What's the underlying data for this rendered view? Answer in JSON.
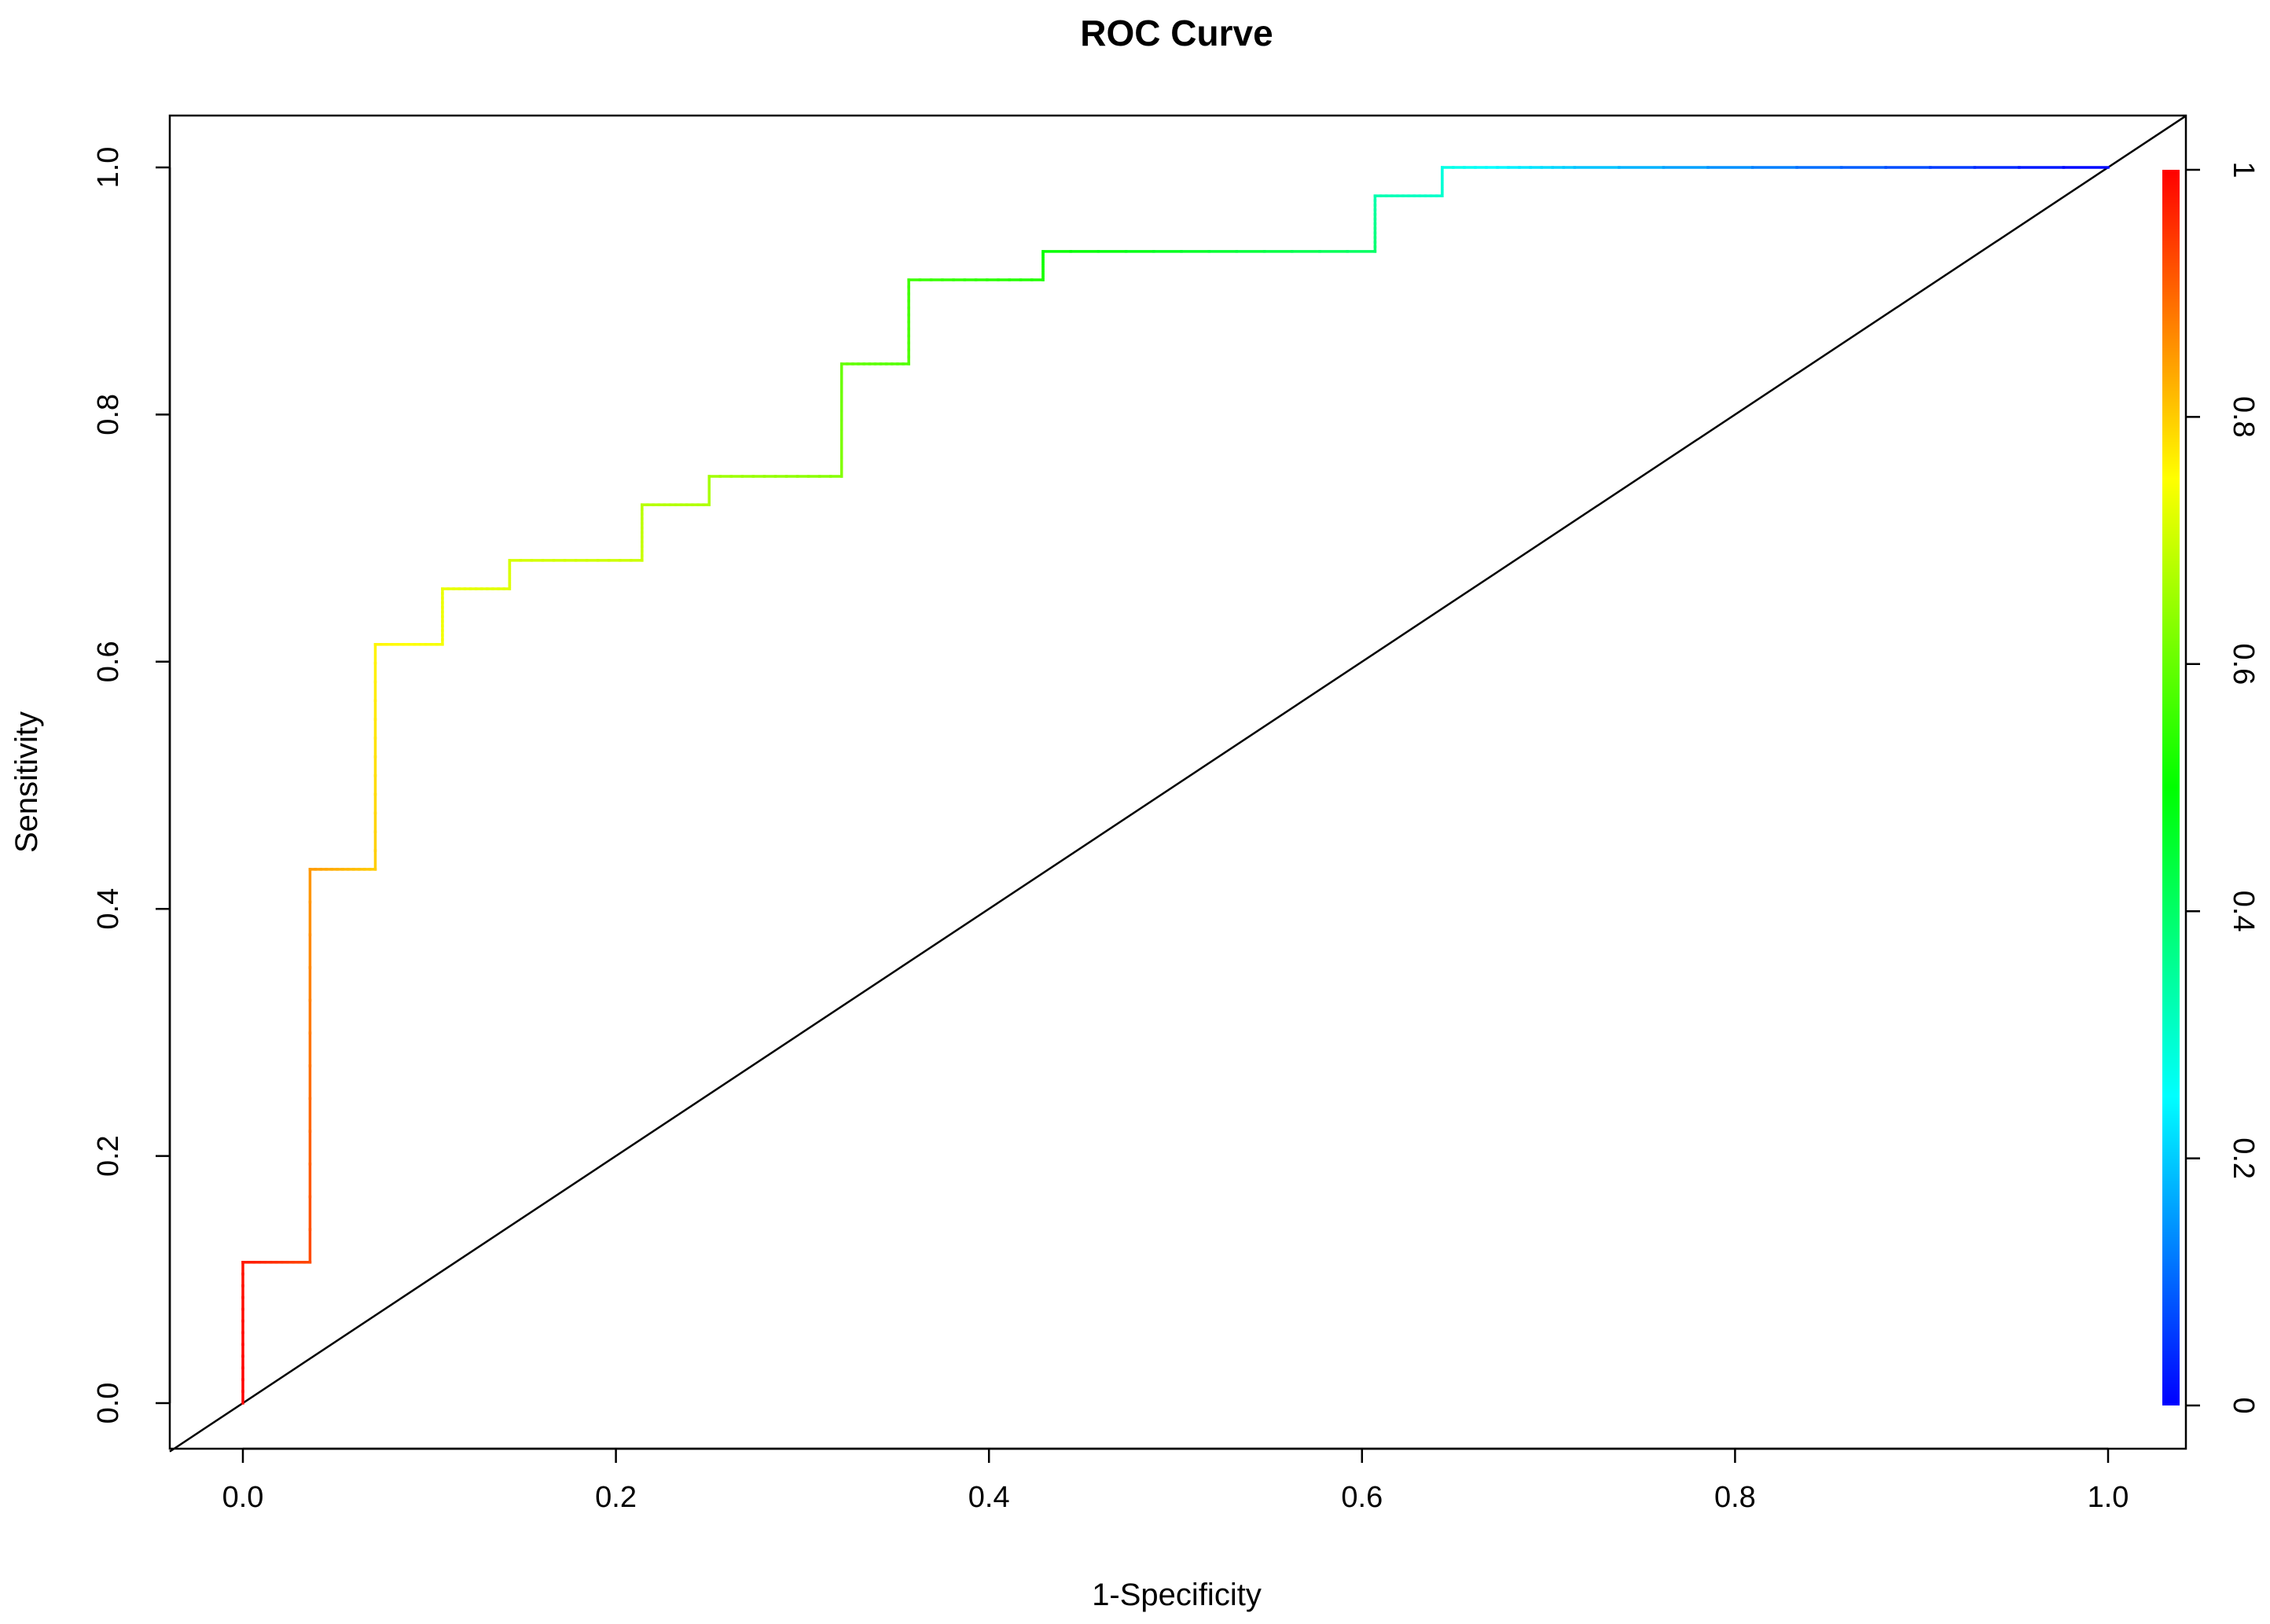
{
  "chart_data": {
    "type": "line",
    "title": "ROC Curve",
    "xlabel": "1-Specificity",
    "ylabel": "Sensitivity",
    "xlim": [
      0.0,
      1.0
    ],
    "ylim": [
      0.0,
      1.0
    ],
    "x_ticks": [
      "0.0",
      "0.2",
      "0.4",
      "0.6",
      "0.8",
      "1.0"
    ],
    "y_ticks": [
      "0.0",
      "0.2",
      "0.4",
      "0.6",
      "0.8",
      "1.0"
    ],
    "grid": false,
    "legend": "none",
    "reference_line": {
      "from": [
        0.0,
        0.0
      ],
      "to": [
        1.0,
        1.0
      ],
      "color": "#000000"
    },
    "series": [
      {
        "points": [
          {
            "x": 0.0,
            "y": 0.0,
            "c": 1.0
          },
          {
            "x": 0.0,
            "y": 0.114,
            "c": 0.98
          },
          {
            "x": 0.036,
            "y": 0.114,
            "c": 0.93
          },
          {
            "x": 0.036,
            "y": 0.432,
            "c": 0.85
          },
          {
            "x": 0.071,
            "y": 0.432,
            "c": 0.8
          },
          {
            "x": 0.071,
            "y": 0.614,
            "c": 0.76
          },
          {
            "x": 0.107,
            "y": 0.614,
            "c": 0.74
          },
          {
            "x": 0.107,
            "y": 0.659,
            "c": 0.73
          },
          {
            "x": 0.143,
            "y": 0.659,
            "c": 0.72
          },
          {
            "x": 0.143,
            "y": 0.682,
            "c": 0.71
          },
          {
            "x": 0.214,
            "y": 0.682,
            "c": 0.7
          },
          {
            "x": 0.214,
            "y": 0.727,
            "c": 0.68
          },
          {
            "x": 0.25,
            "y": 0.727,
            "c": 0.67
          },
          {
            "x": 0.25,
            "y": 0.75,
            "c": 0.66
          },
          {
            "x": 0.321,
            "y": 0.75,
            "c": 0.63
          },
          {
            "x": 0.321,
            "y": 0.841,
            "c": 0.6
          },
          {
            "x": 0.357,
            "y": 0.841,
            "c": 0.58
          },
          {
            "x": 0.357,
            "y": 0.909,
            "c": 0.56
          },
          {
            "x": 0.429,
            "y": 0.909,
            "c": 0.53
          },
          {
            "x": 0.429,
            "y": 0.932,
            "c": 0.51
          },
          {
            "x": 0.607,
            "y": 0.932,
            "c": 0.4
          },
          {
            "x": 0.607,
            "y": 0.977,
            "c": 0.33
          },
          {
            "x": 0.643,
            "y": 0.977,
            "c": 0.3
          },
          {
            "x": 0.643,
            "y": 1.0,
            "c": 0.28
          },
          {
            "x": 0.714,
            "y": 1.0,
            "c": 0.2
          },
          {
            "x": 1.0,
            "y": 1.0,
            "c": 0.0
          }
        ]
      }
    ],
    "colorbar": {
      "range": [
        0,
        1
      ],
      "ticks": [
        "0",
        "0.2",
        "0.4",
        "0.6",
        "0.8",
        "1"
      ],
      "palette": [
        "#0000ff",
        "#00ffff",
        "#00ff00",
        "#ffff00",
        "#ff0000"
      ]
    }
  }
}
